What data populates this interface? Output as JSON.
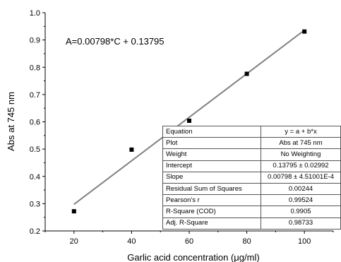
{
  "chart_data": {
    "type": "scatter",
    "title": "",
    "equation_label": "A=0.00798*C + 0.13795",
    "xlabel": "Garlic acid concentration (μg/ml)",
    "ylabel": "Abs at 745 nm",
    "xlim": [
      10,
      110
    ],
    "ylim": [
      0.2,
      1.0
    ],
    "xticks": [
      20,
      40,
      60,
      80,
      100
    ],
    "yticks": [
      0.2,
      0.3,
      0.4,
      0.5,
      0.6,
      0.7,
      0.8,
      0.9,
      1.0
    ],
    "grid": false,
    "points": {
      "x": [
        20,
        40,
        60,
        80,
        100
      ],
      "y": [
        0.272,
        0.498,
        0.604,
        0.776,
        0.931
      ]
    },
    "fit_line": {
      "slope": 0.00798,
      "intercept": 0.13795,
      "x_range": [
        20,
        100
      ]
    },
    "colors": {
      "points": "#000000",
      "fit_line": "#808080",
      "axes": "#000000"
    }
  },
  "stats_table": {
    "rows": [
      [
        "Equation",
        "y = a + b*x"
      ],
      [
        "Plot",
        "Abs at 745 nm"
      ],
      [
        "Weight",
        "No Weighting"
      ],
      [
        "Intercept",
        "0.13795 ± 0.02992"
      ],
      [
        "Slope",
        "0.00798 ± 4.51001E-4"
      ],
      [
        "Residual Sum of Squares",
        "0.00244"
      ],
      [
        "Pearson's r",
        "0.99524"
      ],
      [
        "R-Square (COD)",
        "0.9905"
      ],
      [
        "Adj. R-Square",
        "0.98733"
      ]
    ]
  }
}
